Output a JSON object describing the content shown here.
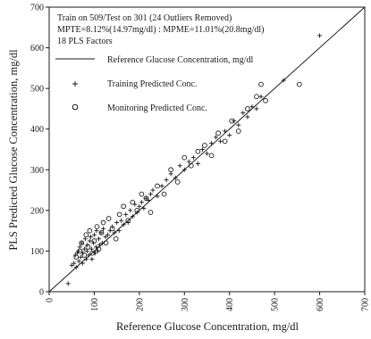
{
  "chart_data": {
    "type": "scatter",
    "title": "",
    "xlabel": "Reference Glucose Concentration, mg/dl",
    "ylabel": "PLS Predicted Glucose Concentration, mg/dl",
    "xlim": [
      0,
      700
    ],
    "ylim": [
      0,
      700
    ],
    "x_ticks": [
      "0",
      "100",
      "200",
      "300",
      "400",
      "500",
      "600",
      "700"
    ],
    "y_ticks": [
      "0",
      "100",
      "200",
      "300",
      "400",
      "500",
      "600",
      "700"
    ],
    "grid": false,
    "legend_position": "top-left",
    "annotations": [
      "Train on 509/Test on 301 (24 Outliers Removed)",
      "MPTE=8.12%(14.97mg/dl) : MPME=11.01%(20.8mg/dl)",
      "18 PLS Factors"
    ],
    "reference_line": {
      "name": "Reference Glucose Concentration, mg/dl",
      "x": [
        0,
        700
      ],
      "y": [
        0,
        700
      ]
    },
    "series": [
      {
        "name": "Training Predicted Conc.",
        "marker": "plus",
        "x": [
          42,
          50,
          55,
          58,
          60,
          62,
          65,
          66,
          68,
          70,
          72,
          74,
          75,
          78,
          80,
          82,
          84,
          85,
          88,
          90,
          92,
          94,
          95,
          98,
          100,
          102,
          104,
          105,
          108,
          110,
          112,
          115,
          118,
          120,
          125,
          130,
          135,
          140,
          145,
          150,
          155,
          160,
          165,
          170,
          175,
          180,
          185,
          190,
          195,
          200,
          205,
          210,
          215,
          220,
          225,
          230,
          240,
          250,
          260,
          270,
          280,
          290,
          300,
          310,
          320,
          330,
          340,
          350,
          360,
          370,
          380,
          390,
          400,
          410,
          420,
          430,
          440,
          450,
          460,
          470,
          520,
          600
        ],
        "y": [
          20,
          65,
          70,
          90,
          60,
          95,
          100,
          75,
          110,
          85,
          120,
          70,
          95,
          105,
          130,
          80,
          100,
          115,
          90,
          125,
          135,
          105,
          80,
          120,
          140,
          95,
          110,
          150,
          100,
          130,
          115,
          145,
          120,
          155,
          135,
          140,
          150,
          160,
          145,
          170,
          150,
          175,
          165,
          190,
          170,
          200,
          185,
          215,
          195,
          210,
          220,
          205,
          230,
          225,
          240,
          250,
          235,
          260,
          275,
          290,
          280,
          310,
          300,
          320,
          330,
          315,
          350,
          340,
          365,
          380,
          370,
          395,
          385,
          420,
          410,
          440,
          430,
          455,
          450,
          480,
          520,
          630
        ]
      },
      {
        "name": "Monitoring Predicted Conc.",
        "marker": "circle",
        "x": [
          60,
          68,
          72,
          78,
          82,
          86,
          90,
          96,
          100,
          106,
          110,
          116,
          120,
          126,
          132,
          140,
          148,
          156,
          165,
          175,
          185,
          195,
          205,
          215,
          225,
          240,
          255,
          270,
          285,
          300,
          315,
          330,
          345,
          360,
          375,
          390,
          405,
          420,
          440,
          460,
          470,
          480,
          555
        ],
        "y": [
          85,
          100,
          120,
          90,
          140,
          110,
          150,
          95,
          125,
          160,
          105,
          145,
          170,
          120,
          180,
          155,
          130,
          190,
          210,
          175,
          220,
          200,
          240,
          230,
          195,
          260,
          240,
          300,
          270,
          330,
          310,
          345,
          360,
          335,
          390,
          370,
          420,
          395,
          450,
          480,
          510,
          470,
          510
        ]
      }
    ]
  }
}
